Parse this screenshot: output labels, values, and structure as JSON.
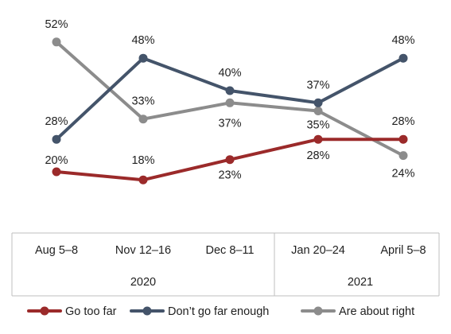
{
  "chart_data": {
    "type": "line",
    "categories": [
      "Aug 5–8",
      "Nov 12–16",
      "Dec 8–11",
      "Jan 20–24",
      "April 5–8"
    ],
    "groups": [
      {
        "label": "2020",
        "categories": [
          "Aug 5–8",
          "Nov 12–16",
          "Dec 8–11"
        ]
      },
      {
        "label": "2021",
        "categories": [
          "Jan 20–24",
          "April 5–8"
        ]
      }
    ],
    "series": [
      {
        "name": "Go too far",
        "color": "#9b2a2a",
        "values": [
          20,
          18,
          23,
          28,
          28
        ]
      },
      {
        "name": "Don’t go far enough",
        "color": "#44546a",
        "values": [
          28,
          48,
          40,
          37,
          48
        ]
      },
      {
        "name": "Are about right",
        "color": "#8c8c8c",
        "values": [
          52,
          33,
          37,
          35,
          24
        ]
      }
    ],
    "data_labels": [
      {
        "series": 1,
        "index": 0,
        "text": "28%"
      },
      {
        "series": 0,
        "index": 0,
        "text": "20%"
      },
      {
        "series": 2,
        "index": 0,
        "text": "52%"
      },
      {
        "series": 1,
        "index": 1,
        "text": "48%"
      },
      {
        "series": 2,
        "index": 1,
        "text": "33%"
      },
      {
        "series": 0,
        "index": 1,
        "text": "18%"
      },
      {
        "series": 1,
        "index": 2,
        "text": "40%"
      },
      {
        "series": 2,
        "index": 2,
        "text": "37%"
      },
      {
        "series": 0,
        "index": 2,
        "text": "23%"
      },
      {
        "series": 1,
        "index": 3,
        "text": "37%"
      },
      {
        "series": 2,
        "index": 3,
        "text": "35%"
      },
      {
        "series": 0,
        "index": 3,
        "text": "28%"
      },
      {
        "series": 1,
        "index": 4,
        "text": "48%"
      },
      {
        "series": 0,
        "index": 4,
        "text": "28%"
      },
      {
        "series": 2,
        "index": 4,
        "text": "24%"
      }
    ],
    "legend_position": "bottom",
    "grid": false
  }
}
